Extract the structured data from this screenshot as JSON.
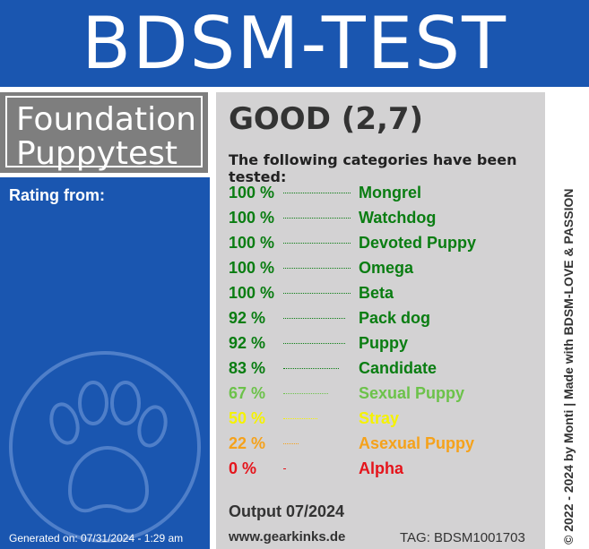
{
  "header": {
    "title": "BDSM-TEST"
  },
  "test": {
    "name": "Foundation\nPuppytest"
  },
  "rating": {
    "label": "Rating from:"
  },
  "result": {
    "grade": "GOOD (2,7)",
    "categories_intro": "The following categories have been tested:",
    "rows": [
      {
        "percent": "100 %",
        "value": 100,
        "category": "Mongrel",
        "color": "#0a7d12"
      },
      {
        "percent": "100 %",
        "value": 100,
        "category": "Watchdog",
        "color": "#0a7d12"
      },
      {
        "percent": "100 %",
        "value": 100,
        "category": "Devoted Puppy",
        "color": "#0a7d12"
      },
      {
        "percent": "100 %",
        "value": 100,
        "category": "Omega",
        "color": "#0a7d12"
      },
      {
        "percent": "100 %",
        "value": 100,
        "category": "Beta",
        "color": "#0a7d12"
      },
      {
        "percent": "92 %",
        "value": 92,
        "category": "Pack dog",
        "color": "#0a7d12"
      },
      {
        "percent": "92 %",
        "value": 92,
        "category": "Puppy",
        "color": "#0a7d12"
      },
      {
        "percent": "83 %",
        "value": 83,
        "category": "Candidate",
        "color": "#0a7d12"
      },
      {
        "percent": "67 %",
        "value": 67,
        "category": "Sexual Puppy",
        "color": "#6cc24a"
      },
      {
        "percent": "50 %",
        "value": 50,
        "category": "Stray",
        "color": "#f5f200"
      },
      {
        "percent": "22 %",
        "value": 22,
        "category": "Asexual Puppy",
        "color": "#f5a21b"
      },
      {
        "percent": "0 %",
        "value": 0,
        "category": "Alpha",
        "color": "#e5141b"
      }
    ]
  },
  "footer": {
    "output": "Output 07/2024",
    "website": "www.gearkinks.de",
    "tag": "TAG: BDSM1001703",
    "generated": "Generated on: 07/31/2024 - 1:29 am",
    "copyright": "© 2022 - 2024 by Monti | Made with BDSM-LOVE & PASSION"
  },
  "colors": {
    "brand_blue": "#1a56b0",
    "panel_gray": "#d3d2d3",
    "title_gray": "#7e7e7e"
  },
  "icons": {
    "paw": "paw-icon"
  }
}
